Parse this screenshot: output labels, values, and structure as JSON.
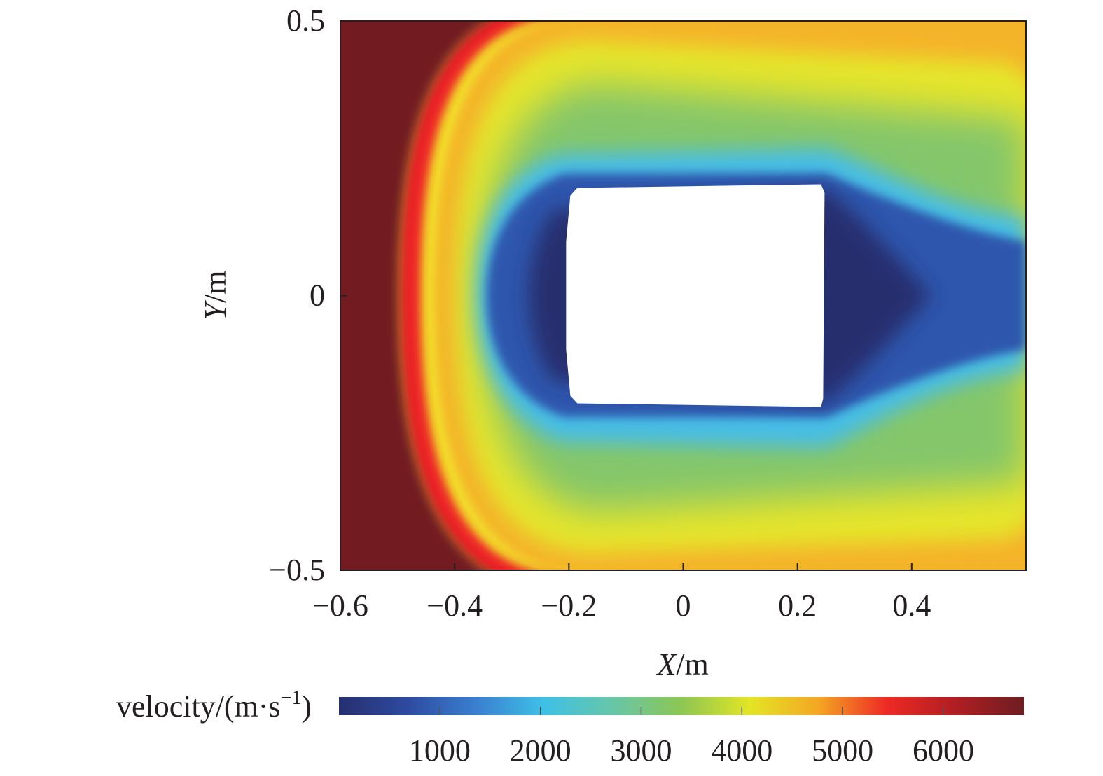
{
  "chart_data": {
    "type": "heatmap",
    "xlabel_var": "X",
    "xlabel_unit": "/m",
    "ylabel_var": "Y",
    "ylabel_unit": "/m",
    "xlim": [
      -0.6,
      0.6
    ],
    "ylim": [
      -0.5,
      0.5
    ],
    "x_ticks": [
      -0.6,
      -0.4,
      -0.2,
      0,
      0.2,
      0.4
    ],
    "x_tick_labels": [
      "−0.6",
      "−0.4",
      "−0.2",
      "0",
      "0.2",
      "0.4"
    ],
    "y_ticks": [
      -0.5,
      0,
      0.5
    ],
    "y_tick_labels": [
      "−0.5",
      "0",
      "0.5"
    ],
    "obstacle": {
      "x": [
        -0.2,
        0.245
      ],
      "y": [
        -0.2,
        0.2
      ]
    },
    "colorbar": {
      "label_main": "velocity/(m·s",
      "label_sup": "−1",
      "label_end": ")",
      "range": [
        0,
        6800
      ],
      "ticks": [
        1000,
        2000,
        3000,
        4000,
        5000,
        6000
      ],
      "tick_labels": [
        "1000",
        "2000",
        "3000",
        "4000",
        "5000",
        "6000"
      ],
      "colors": [
        "#262f6f",
        "#2e4aa0",
        "#3a7fd0",
        "#3ec1e6",
        "#67c6a8",
        "#8dc653",
        "#e3e525",
        "#f4a623",
        "#ee2a24",
        "#b01e23",
        "#6e1d21"
      ]
    },
    "field_colors": {
      "upstream": "#721e22",
      "shock_red": "#ec2227",
      "shock_yellow": "#f2df2b",
      "outer_orange": "#f4b42a",
      "outer_yellow": "#e6e52a",
      "green": "#84c66a",
      "cyan": "#46bde6",
      "blue": "#2f56ad",
      "dark_blue": "#262f6e",
      "obstacle": "#ffffff"
    }
  }
}
